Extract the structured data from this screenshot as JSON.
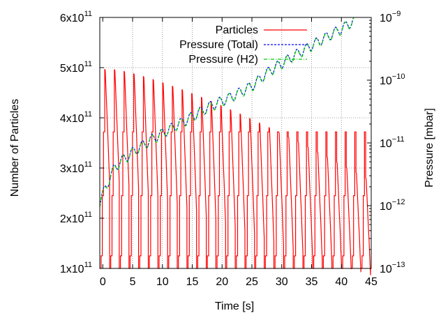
{
  "chart_data": {
    "type": "line",
    "xlabel": "Time [s]",
    "ylabel_left": "Number of Particles",
    "ylabel_right": "Pressure [mbar]",
    "x_ticks": [
      "0",
      "5",
      "10",
      "15",
      "20",
      "25",
      "30",
      "35",
      "40",
      "45"
    ],
    "x_tick_values": [
      0,
      5,
      10,
      15,
      20,
      25,
      30,
      35,
      40,
      45
    ],
    "xlim": [
      -0.5,
      45
    ],
    "y_left_ticks": [
      {
        "mantissa": "1x10",
        "exponent": "11",
        "value": 100000000000.0
      },
      {
        "mantissa": "2x10",
        "exponent": "11",
        "value": 200000000000.0
      },
      {
        "mantissa": "3x10",
        "exponent": "11",
        "value": 300000000000.0
      },
      {
        "mantissa": "4x10",
        "exponent": "11",
        "value": 400000000000.0
      },
      {
        "mantissa": "5x10",
        "exponent": "11",
        "value": 500000000000.0
      },
      {
        "mantissa": "6x10",
        "exponent": "11",
        "value": 600000000000.0
      }
    ],
    "ylim_left": [
      100000000000.0,
      600000000000.0
    ],
    "y_right_ticks": [
      {
        "mantissa": "10",
        "exponent": "−13",
        "value": 1e-13
      },
      {
        "mantissa": "10",
        "exponent": "−12",
        "value": 1e-12
      },
      {
        "mantissa": "10",
        "exponent": "−11",
        "value": 1e-11
      },
      {
        "mantissa": "10",
        "exponent": "−10",
        "value": 1e-10
      },
      {
        "mantissa": "10",
        "exponent": "−9",
        "value": 1e-09
      }
    ],
    "ylim_right": [
      1e-13,
      1e-09
    ],
    "y_right_scale": "log",
    "grid": true,
    "legend_position": "top-right",
    "series": [
      {
        "name": "Particles",
        "axis": "left",
        "color": "#ff0000",
        "style": "solid"
      },
      {
        "name": "Pressure (Total)",
        "axis": "right",
        "color": "#0000ff",
        "style": "dashed"
      },
      {
        "name": "Pressure (H2)",
        "axis": "right",
        "color": "#00cc00",
        "style": "dash-dot"
      }
    ],
    "cycle": {
      "period_s": 1.62,
      "start_s": -0.28,
      "injection_levels": [
        125000000000.0,
        245000000000.0,
        372000000000.0,
        497000000000.0
      ],
      "particle_peak_early": 497000000000.0,
      "particle_peak_at_45s": 270000000000.0,
      "dump_level": 100000000000.0
    },
    "pressure_trend": {
      "x": [
        -0.5,
        0,
        1,
        2,
        3,
        5,
        8,
        12,
        15,
        18,
        22,
        25,
        28,
        32,
        36,
        40,
        43
      ],
      "y": [
        1.1e-12,
        1.5e-12,
        2.5e-12,
        4e-12,
        5e-12,
        7e-12,
        1.1e-11,
        1.8e-11,
        2.6e-11,
        3.8e-11,
        5.6e-11,
        8e-11,
        1.4e-10,
        2.4e-10,
        4e-10,
        6.5e-10,
        1e-09
      ]
    }
  }
}
